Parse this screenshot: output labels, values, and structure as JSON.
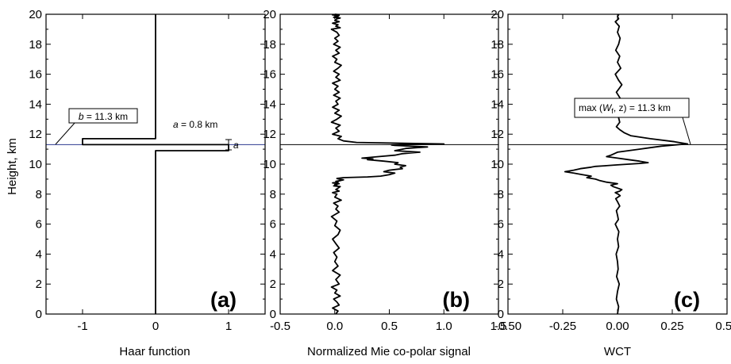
{
  "chart_data": [
    {
      "type": "line",
      "panel_label": "(a)",
      "xlabel": "Haar function",
      "ylabel": "Height, km",
      "xlim": [
        -1.5,
        1.5
      ],
      "ylim": [
        0,
        20
      ],
      "xticks": [
        -1,
        0,
        1
      ],
      "xtick_labels": [
        "-1",
        "0",
        "1"
      ],
      "yticks": [
        0,
        2,
        4,
        6,
        8,
        10,
        12,
        14,
        16,
        18,
        20
      ],
      "ytick_labels": [
        "0",
        "2",
        "4",
        "6",
        "8",
        "10",
        "12",
        "14",
        "16",
        "18",
        "20"
      ],
      "series": [
        {
          "x": [
            0,
            0,
            -1,
            -1,
            1,
            1,
            0,
            0
          ],
          "y": [
            20,
            11.7,
            11.7,
            11.3,
            11.3,
            10.9,
            10.9,
            0
          ]
        }
      ],
      "reference_line_y": 11.3,
      "reference_line_color": "#2b3a8f",
      "annotations": [
        {
          "text_parts": [
            "b",
            " = 11.3 km"
          ],
          "italic_first": true
        },
        {
          "text_parts": [
            "a",
            " = 0.8 km"
          ],
          "italic_first": true
        },
        {
          "text_parts": [
            "a"
          ],
          "italic_first": true
        }
      ]
    },
    {
      "type": "line",
      "panel_label": "(b)",
      "xlabel": "Normalized Mie co-polar signal",
      "xlim": [
        -0.5,
        1.5
      ],
      "ylim": [
        0,
        20
      ],
      "xticks": [
        -0.5,
        0.0,
        0.5,
        1.0,
        1.5
      ],
      "xtick_labels": [
        "-0.5",
        "0.0",
        "0.5",
        "1.0",
        "1.5"
      ],
      "yticks": [
        0,
        2,
        4,
        6,
        8,
        10,
        12,
        14,
        16,
        18,
        20
      ],
      "ytick_labels": [
        "0",
        "2",
        "4",
        "6",
        "8",
        "10",
        "12",
        "14",
        "16",
        "18",
        "20"
      ],
      "reference_line_y": 11.3,
      "series": [
        {
          "x": [
            0.01,
            0.03,
            -0.02,
            0.04,
            0.02,
            -0.01,
            0.05,
            0.0,
            0.02,
            -0.03,
            0.04,
            0.01,
            0.05,
            -0.02,
            0.03,
            0.0,
            0.02,
            -0.01,
            0.04,
            0.01,
            -0.02,
            0.03,
            0.05,
            0.0,
            0.02,
            -0.03,
            0.04,
            0.01,
            0.03,
            -0.01,
            0.06,
            0.0,
            0.02,
            -0.02,
            0.04,
            0.01,
            0.03,
            0.05,
            -0.01,
            0.02,
            0.0,
            0.04,
            -0.02,
            0.03,
            0.01,
            0.05,
            0.08,
            0.04,
            0.02,
            0.08,
            0.3,
            0.42,
            0.5,
            0.55,
            0.45,
            0.5,
            0.62,
            0.6,
            0.65,
            0.55,
            0.58,
            0.45,
            0.3,
            0.35,
            0.25,
            0.4,
            0.55,
            0.62,
            0.78,
            0.55,
            0.62,
            0.65,
            0.75,
            0.85,
            0.7,
            0.55,
            0.52,
            0.6,
            0.7,
            1.0,
            0.2,
            0.08,
            0.03,
            0.06,
            -0.02,
            0.04,
            0.01,
            0.05,
            -0.03,
            0.02,
            0.06,
            0.0,
            0.04,
            -0.02,
            0.03,
            0.01,
            0.05,
            -0.01,
            0.04,
            0.0,
            0.03,
            -0.02,
            0.05,
            0.01,
            0.04,
            -0.01,
            0.03,
            0.06,
            0.0,
            0.02,
            -0.02,
            0.04,
            0.01,
            0.05,
            -0.01,
            0.03,
            0.0,
            0.04,
            0.02,
            -0.03,
            0.05,
            0.01,
            0.03,
            -0.02,
            0.04,
            0.0,
            0.02,
            0.05,
            -0.01,
            0.03,
            0.01,
            0.04,
            -0.02,
            0.03,
            0.0
          ],
          "y": [
            0.0,
            0.2,
            0.4,
            0.6,
            0.8,
            1.0,
            1.2,
            1.4,
            1.6,
            1.8,
            2.0,
            2.3,
            2.6,
            2.9,
            3.2,
            3.5,
            3.8,
            4.1,
            4.4,
            4.7,
            5.0,
            5.3,
            5.6,
            5.9,
            6.2,
            6.5,
            6.8,
            7.0,
            7.2,
            7.4,
            7.6,
            7.8,
            8.0,
            8.1,
            8.2,
            8.3,
            8.4,
            8.5,
            8.55,
            8.6,
            8.65,
            8.7,
            8.75,
            8.8,
            8.85,
            8.9,
            8.95,
            9.0,
            9.05,
            9.1,
            9.15,
            9.2,
            9.3,
            9.4,
            9.5,
            9.6,
            9.7,
            9.8,
            9.9,
            10.0,
            10.1,
            10.2,
            10.3,
            10.35,
            10.4,
            10.5,
            10.6,
            10.7,
            10.8,
            10.9,
            11.0,
            11.05,
            11.1,
            11.15,
            11.2,
            11.25,
            11.28,
            11.3,
            11.32,
            11.35,
            11.45,
            11.55,
            11.7,
            11.85,
            12.0,
            12.2,
            12.4,
            12.6,
            12.8,
            13.0,
            13.2,
            13.4,
            13.6,
            13.8,
            14.0,
            14.2,
            14.4,
            14.6,
            14.8,
            15.0,
            15.2,
            15.4,
            15.6,
            15.8,
            16.0,
            16.2,
            16.4,
            16.6,
            16.8,
            17.0,
            17.2,
            17.4,
            17.6,
            17.8,
            18.0,
            18.2,
            18.4,
            18.6,
            18.8,
            19.0,
            19.1,
            19.2,
            19.3,
            19.4,
            19.5,
            19.6,
            19.7,
            19.75,
            19.8,
            19.85,
            19.9,
            19.93,
            19.96,
            19.98,
            20.0
          ]
        }
      ]
    },
    {
      "type": "line",
      "panel_label": "(c)",
      "xlabel": "WCT",
      "xlim": [
        -0.5,
        0.5
      ],
      "ylim": [
        0,
        20
      ],
      "xticks": [
        -0.5,
        -0.25,
        0.0,
        0.25,
        0.5
      ],
      "xtick_labels": [
        "-0.50",
        "-0.25",
        "0.00",
        "0.25",
        "0.50"
      ],
      "yticks": [
        0,
        2,
        4,
        6,
        8,
        10,
        12,
        14,
        16,
        18,
        20
      ],
      "ytick_labels": [
        "0",
        "2",
        "4",
        "6",
        "8",
        "10",
        "12",
        "14",
        "16",
        "18",
        "20"
      ],
      "reference_line_y": 11.3,
      "series": [
        {
          "x": [
            0.0,
            0.005,
            -0.005,
            0.0,
            0.008,
            -0.004,
            0.003,
            0.0,
            -0.006,
            0.005,
            0.0,
            0.006,
            -0.01,
            0.004,
            0.0,
            -0.005,
            0.01,
            0.0,
            -0.008,
            0.012,
            0.003,
            -0.01,
            0.01,
            0.02,
            0.0,
            -0.02,
            -0.03,
            0.0,
            -0.05,
            -0.08,
            -0.1,
            -0.14,
            -0.12,
            -0.16,
            -0.2,
            -0.24,
            -0.2,
            -0.17,
            -0.12,
            -0.1,
            -0.05,
            0.0,
            0.05,
            0.1,
            0.14,
            0.1,
            0.05,
            0.0,
            -0.05,
            -0.03,
            0.0,
            0.05,
            0.1,
            0.15,
            0.2,
            0.28,
            0.32,
            0.26,
            0.15,
            0.06,
            0.03,
            0.01,
            -0.005,
            0.01,
            0.005,
            -0.01,
            0.008,
            0.0,
            0.012,
            -0.005,
            0.01,
            0.02,
            0.005,
            -0.01,
            0.015,
            0.0,
            0.01,
            -0.008,
            0.005,
            0.012,
            0.0,
            0.008,
            -0.01,
            0.005,
            0.0,
            0.006
          ],
          "y": [
            0.0,
            0.5,
            1.0,
            1.5,
            2.0,
            2.5,
            3.0,
            3.5,
            4.0,
            4.5,
            5.0,
            5.5,
            6.0,
            6.3,
            6.6,
            6.9,
            7.2,
            7.5,
            7.7,
            7.9,
            8.0,
            8.1,
            8.2,
            8.3,
            8.4,
            8.5,
            8.6,
            8.7,
            8.8,
            8.9,
            9.0,
            9.1,
            9.2,
            9.3,
            9.4,
            9.5,
            9.6,
            9.7,
            9.8,
            9.85,
            9.9,
            9.95,
            10.0,
            10.05,
            10.1,
            10.2,
            10.3,
            10.4,
            10.5,
            10.6,
            10.8,
            10.9,
            11.0,
            11.1,
            11.2,
            11.3,
            11.35,
            11.5,
            11.7,
            11.9,
            12.1,
            12.3,
            12.5,
            12.8,
            13.1,
            13.4,
            13.7,
            14.0,
            14.4,
            14.8,
            15.1,
            15.3,
            15.6,
            16.0,
            16.4,
            16.8,
            17.2,
            17.6,
            18.0,
            18.4,
            18.8,
            19.2,
            19.5,
            19.7,
            19.85,
            20.0
          ]
        }
      ],
      "annotations": [
        {
          "text_parts": [
            "max (",
            "W",
            "f",
            ", z) = 11.3 km"
          ]
        }
      ]
    }
  ]
}
